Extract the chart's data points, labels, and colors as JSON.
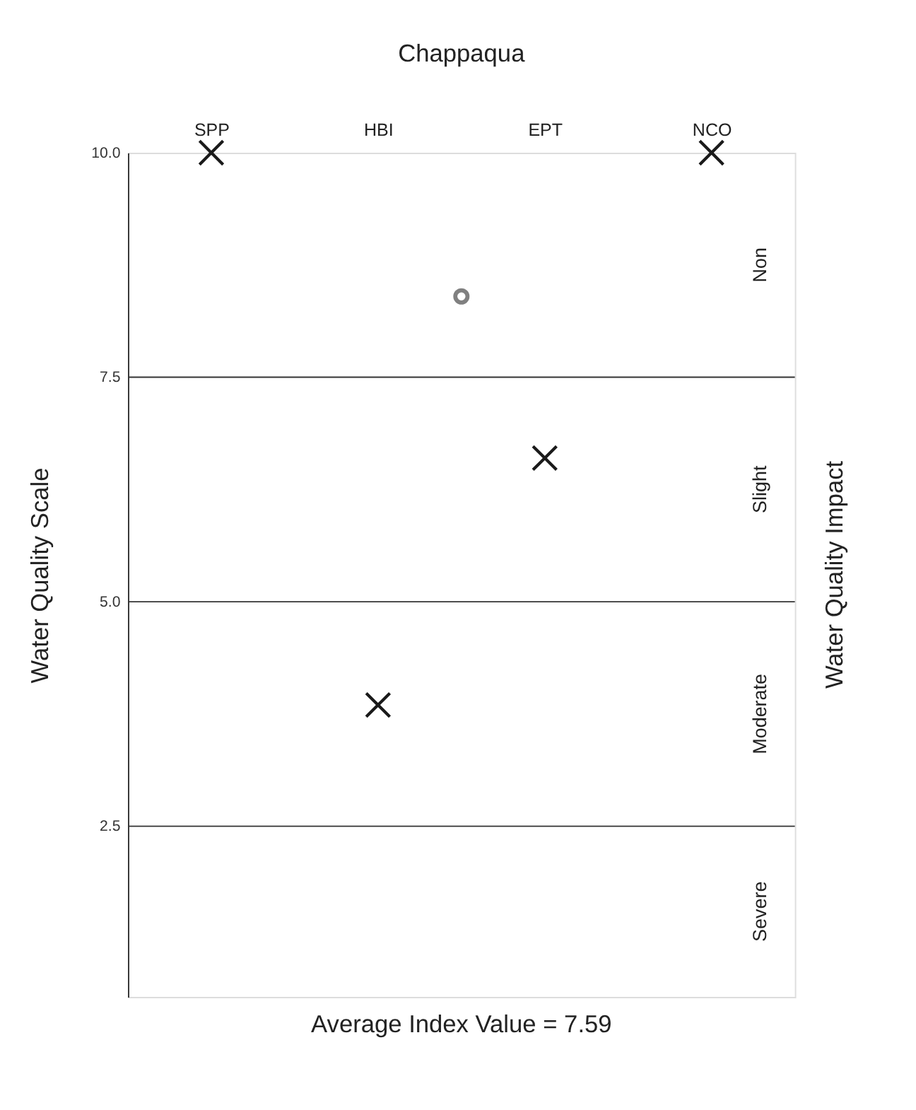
{
  "chart_data": {
    "type": "scatter",
    "title": "Chappaqua",
    "ylabel": "Water Quality Scale",
    "y2label": "Water Quality Impact",
    "annotations": [
      "Non",
      "Slight",
      "Moderate",
      "Severe",
      "Average Index Value = 7.59"
    ],
    "categories": [
      "SPP",
      null,
      "HBI",
      null,
      "EPT",
      null,
      "NCO"
    ],
    "ylim": [
      0.6,
      10
    ],
    "yticks": [
      {
        "value": 2.5,
        "label": "2.5"
      },
      {
        "value": 5,
        "label": "5.0"
      },
      {
        "value": 7.5,
        "label": "7.5"
      },
      {
        "value": 10,
        "label": "10.0"
      }
    ],
    "series": [
      {
        "color": "#1a1a1a",
        "marker": "cross",
        "values": [
          10,
          null,
          3.85,
          null,
          6.6,
          null,
          10
        ]
      },
      {
        "color": "#808080",
        "marker": "circle",
        "values": [
          null,
          null,
          null,
          8.4,
          null,
          null,
          null
        ]
      }
    ],
    "ref_lines": [
      {
        "axis": "y",
        "value": 7.5
      },
      {
        "axis": "y",
        "value": 5
      },
      {
        "axis": "y",
        "value": 2.5
      }
    ],
    "grid": false,
    "legend": false
  }
}
